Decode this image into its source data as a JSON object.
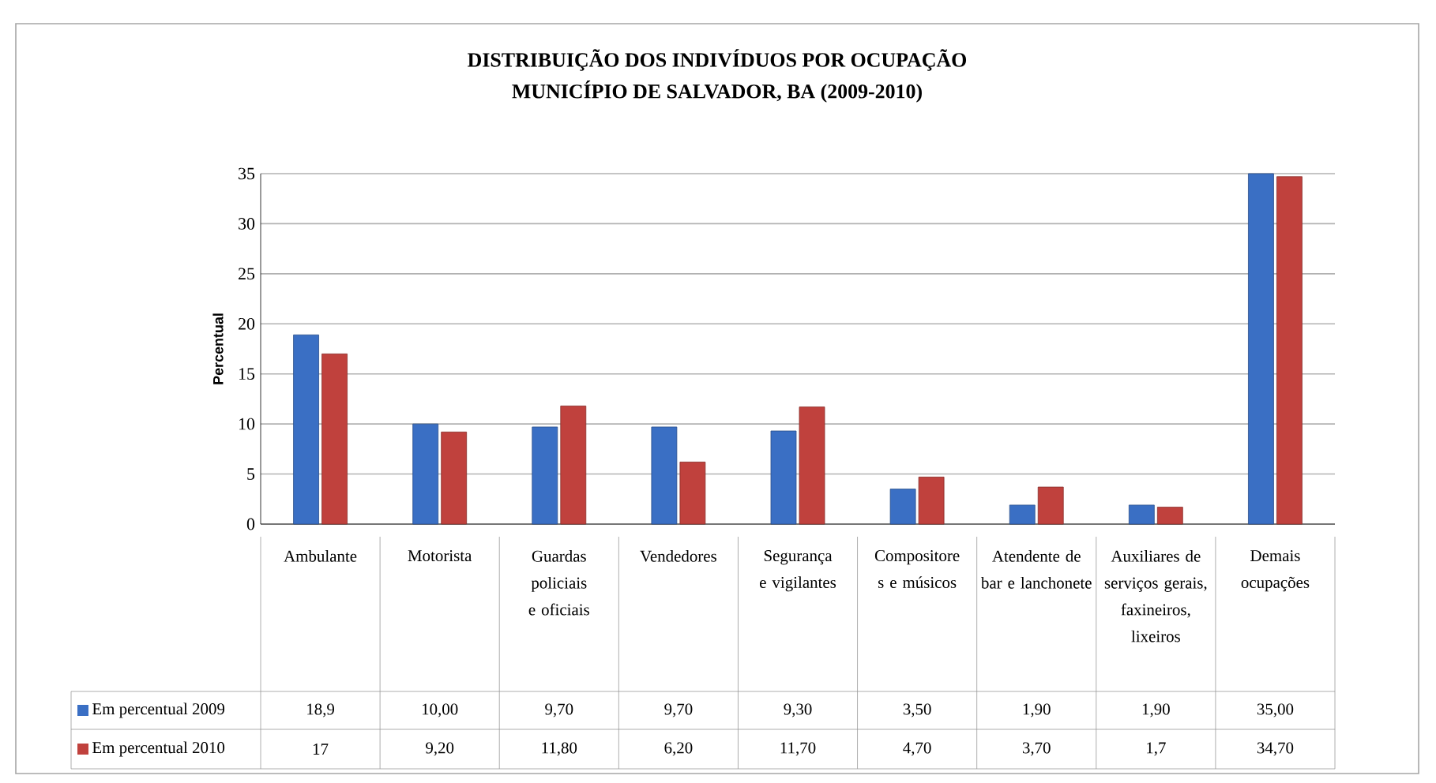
{
  "chart_data": {
    "type": "bar",
    "title": "DISTRIBUIÇÃO DOS INDIVÍDUOS POR OCUPAÇÃO",
    "subtitle": "MUNICÍPIO DE SALVADOR, BA (2009-2010)",
    "ylabel": "Percentual",
    "categories": [
      "Ambulante",
      "Motorista",
      "Guardas policiais e oficiais",
      "Vendedores",
      "Segurança e vigilantes",
      "Compositore s e músicos",
      "Atendente de bar e lanchonete",
      "Auxiliares de serviços gerais, faxineiros, lixeiros",
      "Demais ocupações"
    ],
    "series": [
      {
        "name": "Em percentual 2009",
        "color": "#3a6fc4",
        "values": [
          18.9,
          10.0,
          9.7,
          9.7,
          9.3,
          3.5,
          1.9,
          1.9,
          35.0
        ],
        "value_labels": [
          "18,9",
          "10,00",
          "9,70",
          "9,70",
          "9,30",
          "3,50",
          "1,90",
          "1,90",
          "35,00"
        ]
      },
      {
        "name": "Em percentual 2010",
        "color": "#c0413d",
        "values": [
          17,
          9.2,
          11.8,
          6.2,
          11.7,
          4.7,
          3.7,
          1.7,
          34.7
        ],
        "value_labels": [
          "17",
          "9,20",
          "11,80",
          "6,20",
          "11,70",
          "4,70",
          "3,70",
          "1,7",
          "34,70"
        ]
      }
    ],
    "ylim": [
      0,
      35
    ],
    "yticks": [
      0,
      5,
      10,
      15,
      20,
      25,
      30,
      35
    ],
    "grid": "y",
    "legend": "bottom"
  }
}
